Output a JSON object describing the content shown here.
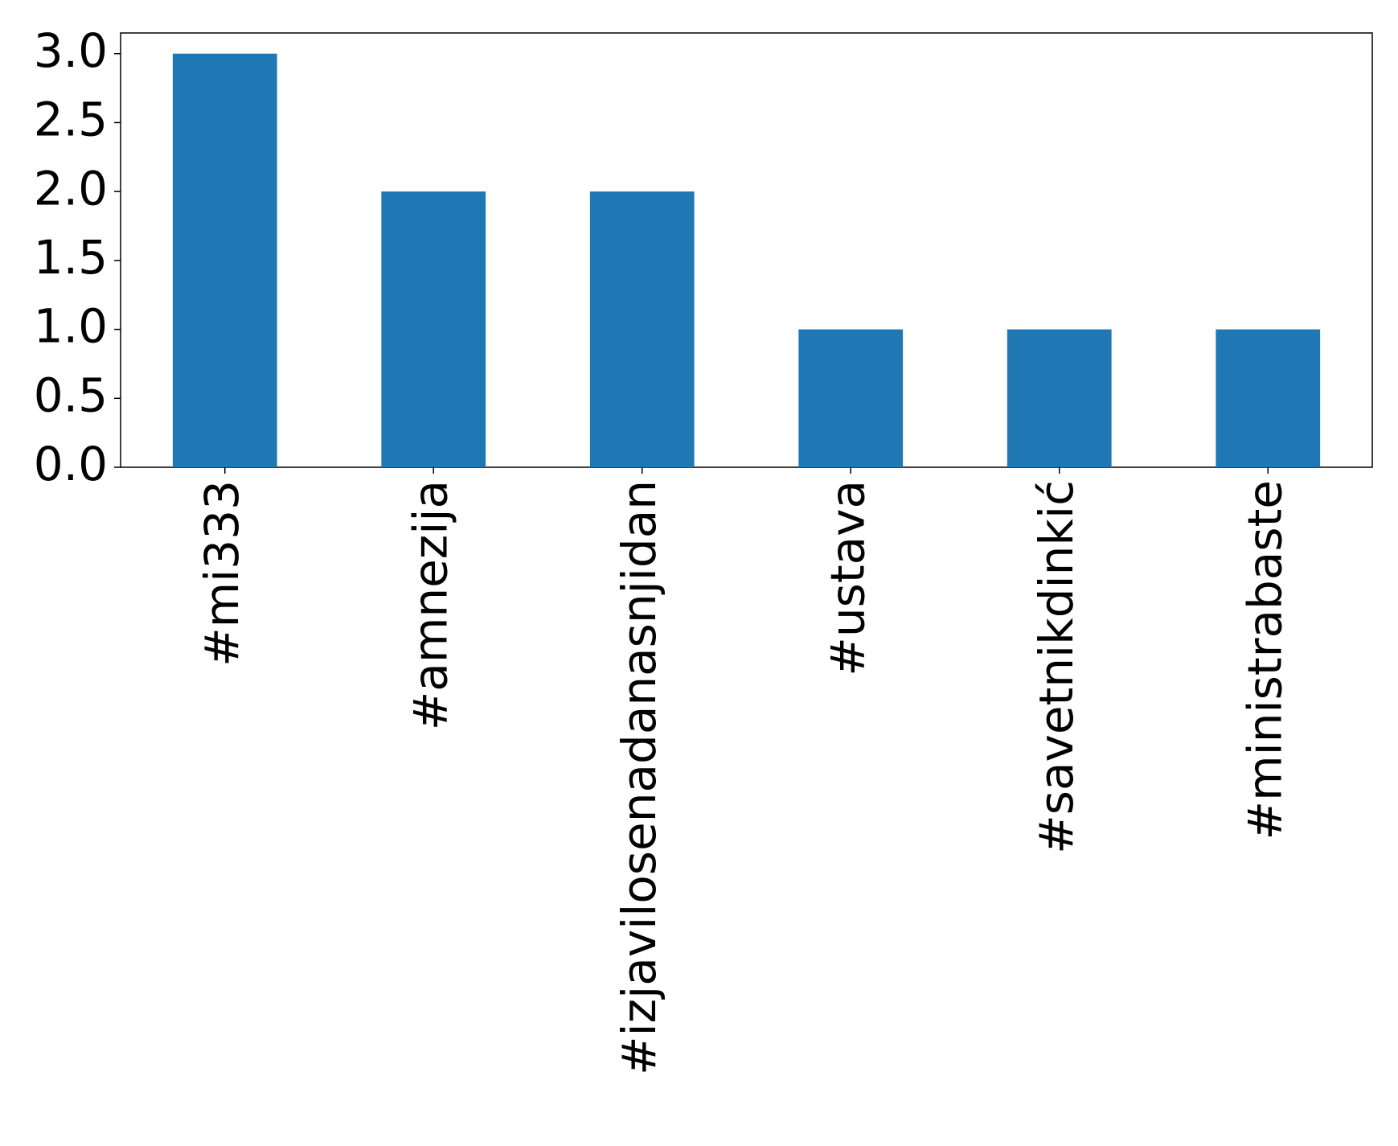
{
  "chart_data": {
    "type": "bar",
    "categories": [
      "#mi333",
      "#amnezija",
      "#izjavilosenadanasnjidan",
      "#ustava",
      "#savetnikdinkić",
      "#ministrabaste"
    ],
    "values": [
      3,
      2,
      2,
      1,
      1,
      1
    ],
    "color": "#1f77b4",
    "ylim": [
      0,
      3.15
    ],
    "yticks": [
      {
        "value": 0,
        "label": "0.0"
      },
      0.5,
      {
        "value": 1,
        "label": "1.0"
      },
      1.5,
      {
        "value": 2,
        "label": "2.0"
      },
      2.5,
      {
        "value": 3,
        "label": "3.0"
      }
    ],
    "grid": false
  }
}
